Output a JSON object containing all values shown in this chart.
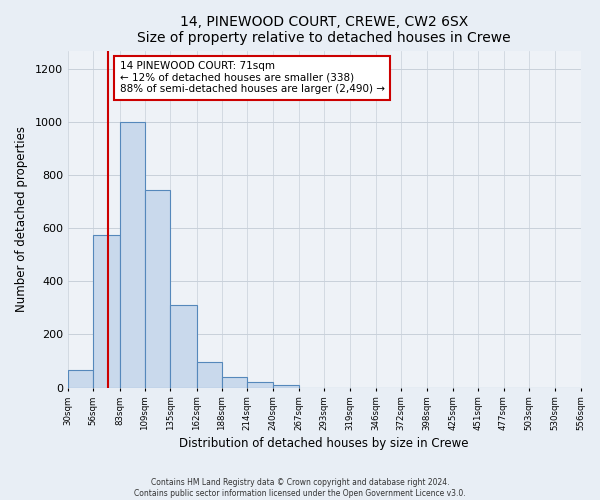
{
  "title": "14, PINEWOOD COURT, CREWE, CW2 6SX",
  "subtitle": "Size of property relative to detached houses in Crewe",
  "xlabel": "Distribution of detached houses by size in Crewe",
  "ylabel": "Number of detached properties",
  "bin_edges": [
    30,
    56,
    83,
    109,
    135,
    162,
    188,
    214,
    240,
    267,
    293,
    319,
    346,
    372,
    398,
    425,
    451,
    477,
    503,
    530,
    556
  ],
  "bar_heights": [
    65,
    575,
    1000,
    745,
    310,
    95,
    40,
    20,
    10,
    0,
    0,
    0,
    0,
    0,
    0,
    0,
    0,
    0,
    0,
    0
  ],
  "bar_color": "#c9d9ec",
  "bar_edge_color": "#5588bb",
  "property_line_x": 71,
  "property_line_color": "#cc0000",
  "annotation_line1": "14 PINEWOOD COURT: 71sqm",
  "annotation_line2": "← 12% of detached houses are smaller (338)",
  "annotation_line3": "88% of semi-detached houses are larger (2,490) →",
  "annotation_box_color": "#ffffff",
  "annotation_box_edge": "#cc0000",
  "ylim": [
    0,
    1270
  ],
  "yticks": [
    0,
    200,
    400,
    600,
    800,
    1000,
    1200
  ],
  "tick_labels": [
    "30sqm",
    "56sqm",
    "83sqm",
    "109sqm",
    "135sqm",
    "162sqm",
    "188sqm",
    "214sqm",
    "240sqm",
    "267sqm",
    "293sqm",
    "319sqm",
    "346sqm",
    "372sqm",
    "398sqm",
    "425sqm",
    "451sqm",
    "477sqm",
    "503sqm",
    "530sqm",
    "556sqm"
  ],
  "footer_line1": "Contains HM Land Registry data © Crown copyright and database right 2024.",
  "footer_line2": "Contains public sector information licensed under the Open Government Licence v3.0.",
  "fig_background": "#e8eef5",
  "plot_background": "#eef2f7",
  "grid_color": "#c8d0da",
  "spine_color": "#c0c8d4"
}
